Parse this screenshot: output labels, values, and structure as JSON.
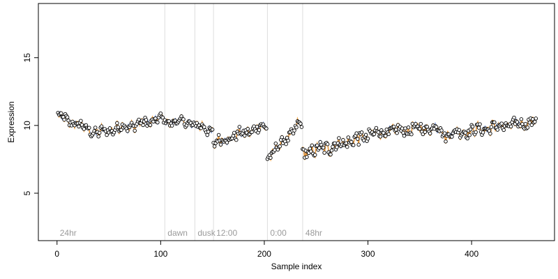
{
  "chart_data": {
    "type": "scatter",
    "xlabel": "Sample index",
    "ylabel": "Expression",
    "xlim": [
      -18,
      480
    ],
    "ylim": [
      1.5,
      19
    ],
    "x_ticks": [
      0,
      100,
      200,
      300,
      400
    ],
    "y_ticks": [
      5,
      10,
      15
    ],
    "grid": false,
    "colors": {
      "points_fill": "#ffffff",
      "points_stroke": "#000000",
      "line_blue": "#6f8fd6",
      "line_orange": "#f0a040",
      "vline": "#dddddd",
      "annotation": "#9a9a9a"
    },
    "annotations": [
      {
        "label": "24hr",
        "x": 0
      },
      {
        "label": "dawn",
        "x": 104
      },
      {
        "label": "dusk",
        "x": 133
      },
      {
        "label": "12:00",
        "x": 151
      },
      {
        "label": "0:00",
        "x": 203
      },
      {
        "label": "48hr",
        "x": 237
      }
    ],
    "segments": [
      {
        "x_start": 1,
        "x_end": 40,
        "y_start": 10.7,
        "y_end": 9.4,
        "noise": 0.25
      },
      {
        "x_start": 41,
        "x_end": 103,
        "y_start": 9.5,
        "y_end": 10.5,
        "noise": 0.25
      },
      {
        "x_start": 104,
        "x_end": 132,
        "y_start": 10.3,
        "y_end": 10.2,
        "noise": 0.18
      },
      {
        "x_start": 133,
        "x_end": 150,
        "y_start": 10.0,
        "y_end": 9.6,
        "noise": 0.25
      },
      {
        "x_start": 151,
        "x_end": 202,
        "y_start": 8.7,
        "y_end": 10.0,
        "noise": 0.3
      },
      {
        "x_start": 203,
        "x_end": 236,
        "y_start": 7.6,
        "y_end": 10.2,
        "noise": 0.3
      },
      {
        "x_start": 237,
        "x_end": 300,
        "y_start": 7.9,
        "y_end": 9.2,
        "noise": 0.45
      },
      {
        "x_start": 301,
        "x_end": 370,
        "y_start": 9.4,
        "y_end": 9.9,
        "noise": 0.35
      },
      {
        "x_start": 371,
        "x_end": 462,
        "y_start": 9.3,
        "y_end": 10.3,
        "noise": 0.3
      }
    ]
  }
}
